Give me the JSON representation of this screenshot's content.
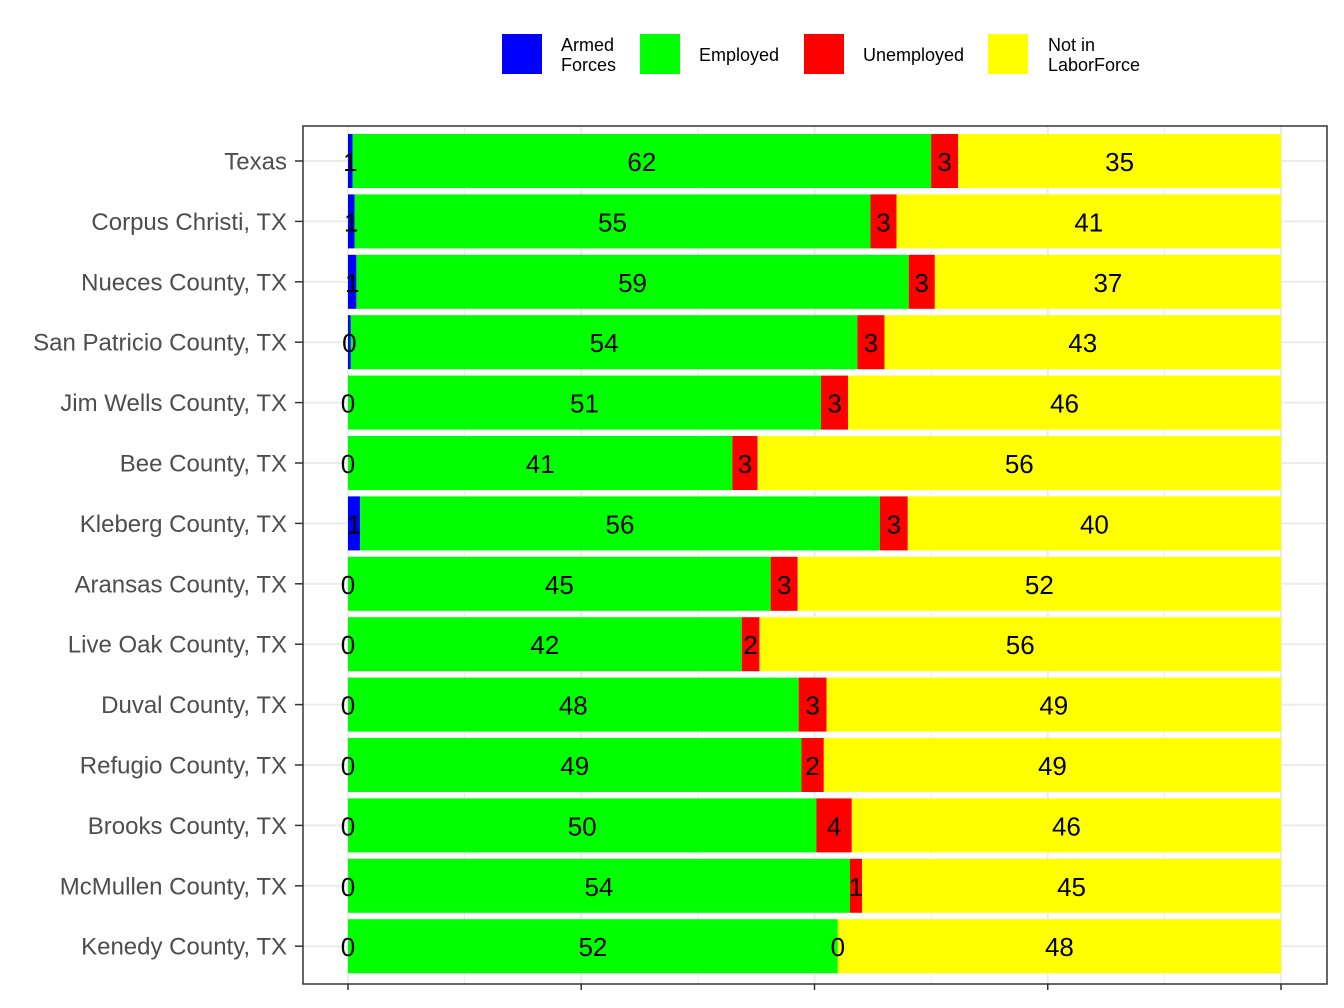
{
  "chart_data": {
    "type": "bar",
    "orientation": "horizontal",
    "stacked": true,
    "title": "",
    "xlabel": "",
    "ylabel": "",
    "xlim": [
      0,
      100
    ],
    "grid": true,
    "legend_position": "top",
    "categories": [
      "Texas",
      "Corpus Christi, TX",
      "Nueces County, TX",
      "San Patricio County, TX",
      "Jim Wells County, TX",
      "Bee County, TX",
      "Kleberg County, TX",
      "Aransas County, TX",
      "Live Oak County, TX",
      "Duval County, TX",
      "Refugio County, TX",
      "Brooks County, TX",
      "McMullen County, TX",
      "Kenedy County, TX"
    ],
    "series": [
      {
        "name": "Armed Forces",
        "legend_lines": [
          "Armed",
          "Forces"
        ],
        "color": "#0000ff",
        "values": [
          0.5,
          0.7,
          0.9,
          0.3,
          0,
          0,
          1.3,
          0,
          0,
          0,
          0,
          0,
          0,
          0
        ],
        "labels": [
          "1",
          "1",
          "1",
          "0",
          "0",
          "0",
          "1",
          "0",
          "0",
          "0",
          "0",
          "0",
          "0",
          "0"
        ]
      },
      {
        "name": "Employed",
        "legend_lines": [
          "Employed"
        ],
        "color": "#00ff00",
        "values": [
          62,
          55.3,
          59.2,
          54.3,
          50.7,
          41.2,
          55.7,
          45.3,
          42.2,
          48.3,
          48.6,
          50.2,
          53.8,
          52.5
        ],
        "labels": [
          "62",
          "55",
          "59",
          "54",
          "51",
          "41",
          "56",
          "45",
          "42",
          "48",
          "49",
          "50",
          "54",
          "52"
        ]
      },
      {
        "name": "Unemployed",
        "legend_lines": [
          "Unemployed"
        ],
        "color": "#ff0000",
        "values": [
          2.9,
          2.8,
          2.8,
          2.9,
          2.9,
          2.7,
          3.0,
          2.9,
          1.9,
          3.0,
          2.4,
          3.8,
          1.3,
          0
        ],
        "labels": [
          "3",
          "3",
          "3",
          "3",
          "3",
          "3",
          "3",
          "3",
          "2",
          "3",
          "2",
          "4",
          "1",
          "0"
        ]
      },
      {
        "name": "Not in LaborForce",
        "legend_lines": [
          "Not in",
          "LaborForce"
        ],
        "color": "#ffff00",
        "values": [
          34.6,
          41.2,
          37.1,
          42.5,
          46.4,
          56.1,
          40.0,
          51.8,
          55.9,
          48.7,
          49.0,
          46.0,
          44.9,
          47.5
        ],
        "labels": [
          "35",
          "41",
          "37",
          "43",
          "46",
          "56",
          "40",
          "52",
          "56",
          "49",
          "49",
          "46",
          "45",
          "48"
        ]
      }
    ]
  }
}
